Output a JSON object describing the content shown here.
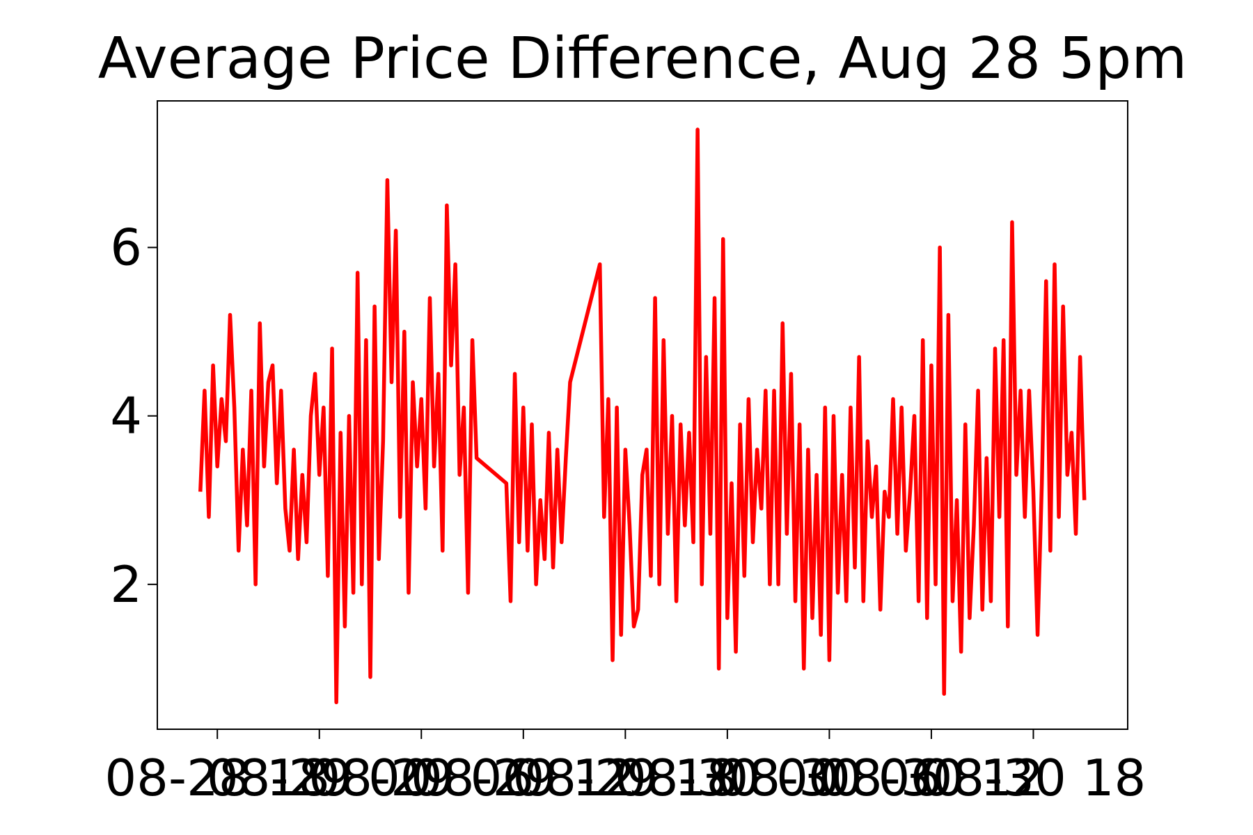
{
  "chart_data": {
    "type": "line",
    "title": "Average Price Difference, Aug 28 5pm",
    "color": "#ff0000",
    "xlim": [
      14.47,
      71.55
    ],
    "xticks": [
      {
        "value": 18,
        "label": "08-28 18"
      },
      {
        "value": 24,
        "label": "08-29 00"
      },
      {
        "value": 30,
        "label": "08-29 06"
      },
      {
        "value": 36,
        "label": "08-29 12"
      },
      {
        "value": 42,
        "label": "08-29 18"
      },
      {
        "value": 48,
        "label": "08-30 00"
      },
      {
        "value": 54,
        "label": "08-30 06"
      },
      {
        "value": 60,
        "label": "08-30 12"
      },
      {
        "value": 66,
        "label": "08-30 18"
      }
    ],
    "ylim": [
      0.28,
      7.74
    ],
    "yticks": [
      2,
      4,
      6
    ],
    "grid": false,
    "x": [
      17,
      17.25,
      17.5,
      17.75,
      18,
      18.25,
      18.5,
      18.75,
      19,
      19.25,
      19.5,
      19.75,
      20,
      20.25,
      20.5,
      20.75,
      21,
      21.25,
      21.5,
      21.75,
      22,
      22.25,
      22.5,
      22.75,
      23,
      23.25,
      23.5,
      23.75,
      24,
      24.25,
      24.5,
      24.75,
      25,
      25.25,
      25.5,
      25.75,
      26,
      26.25,
      26.5,
      26.75,
      27,
      27.25,
      27.5,
      27.75,
      28,
      28.25,
      28.5,
      28.75,
      29,
      29.25,
      29.5,
      29.75,
      30,
      30.25,
      30.5,
      30.75,
      31,
      31.25,
      31.5,
      31.75,
      32,
      32.25,
      32.5,
      32.75,
      33,
      33.25,
      35,
      35.25,
      35.5,
      35.75,
      36,
      36.25,
      36.5,
      36.75,
      37,
      37.25,
      37.5,
      37.75,
      38,
      38.25,
      38.5,
      38.75,
      40.5,
      40.75,
      41,
      41.25,
      41.5,
      41.75,
      42,
      42.25,
      42.5,
      42.75,
      43,
      43.25,
      43.5,
      43.75,
      44,
      44.25,
      44.5,
      44.75,
      45,
      45.25,
      45.5,
      45.75,
      46,
      46.25,
      46.5,
      46.75,
      47,
      47.25,
      47.5,
      47.75,
      48,
      48.25,
      48.5,
      48.75,
      49,
      49.25,
      49.5,
      49.75,
      50,
      50.25,
      50.5,
      50.75,
      51,
      51.25,
      51.5,
      51.75,
      52,
      52.25,
      52.5,
      52.75,
      53,
      53.25,
      53.5,
      53.75,
      54,
      54.25,
      54.5,
      54.75,
      55,
      55.25,
      55.5,
      55.75,
      56,
      56.25,
      56.5,
      56.75,
      57,
      57.25,
      57.5,
      57.75,
      58,
      58.25,
      58.5,
      58.75,
      59,
      59.25,
      59.5,
      59.75,
      60,
      60.25,
      60.5,
      60.75,
      61,
      61.25,
      61.5,
      61.75,
      62,
      62.25,
      62.5,
      62.75,
      63,
      63.25,
      63.5,
      63.75,
      64,
      64.25,
      64.5,
      64.75,
      65,
      65.25,
      65.5,
      65.75,
      66,
      66.25,
      66.5,
      66.75,
      67,
      67.25,
      67.5,
      67.75,
      68,
      68.25,
      68.5,
      68.75,
      69
    ],
    "values": [
      3.1,
      4.3,
      2.8,
      4.6,
      3.4,
      4.2,
      3.7,
      5.2,
      4.1,
      2.4,
      3.6,
      2.7,
      4.3,
      2.0,
      5.1,
      3.4,
      4.4,
      4.6,
      3.2,
      4.3,
      2.9,
      2.4,
      3.6,
      2.3,
      3.3,
      2.5,
      4.0,
      4.5,
      3.3,
      4.1,
      2.1,
      4.8,
      0.6,
      3.8,
      1.5,
      4.0,
      1.9,
      5.7,
      2.0,
      4.9,
      0.9,
      5.3,
      2.3,
      3.7,
      6.8,
      4.4,
      6.2,
      2.8,
      5.0,
      1.9,
      4.4,
      3.4,
      4.2,
      2.9,
      5.4,
      3.4,
      4.5,
      2.4,
      6.5,
      4.6,
      5.8,
      3.3,
      4.1,
      1.9,
      4.9,
      3.5,
      3.2,
      1.8,
      4.5,
      2.5,
      4.1,
      2.4,
      3.9,
      2.0,
      3.0,
      2.3,
      3.8,
      2.2,
      3.6,
      2.5,
      3.5,
      4.4,
      5.8,
      2.8,
      4.2,
      1.1,
      4.1,
      1.4,
      3.6,
      2.7,
      1.5,
      1.7,
      3.3,
      3.6,
      2.1,
      5.4,
      2.0,
      4.9,
      2.6,
      4.0,
      1.8,
      3.9,
      2.7,
      3.8,
      2.5,
      7.4,
      2.0,
      4.7,
      2.6,
      5.4,
      1.0,
      6.1,
      1.6,
      3.2,
      1.2,
      3.9,
      2.1,
      4.2,
      2.5,
      3.6,
      2.9,
      4.3,
      2.0,
      4.3,
      2.0,
      5.1,
      2.6,
      4.5,
      1.8,
      3.9,
      1.0,
      3.6,
      1.6,
      3.3,
      1.4,
      4.1,
      1.1,
      4.0,
      1.9,
      3.3,
      1.8,
      4.1,
      2.2,
      4.7,
      1.8,
      3.7,
      2.8,
      3.4,
      1.7,
      3.1,
      2.8,
      4.2,
      2.6,
      4.1,
      2.4,
      3.1,
      4.0,
      1.8,
      4.9,
      1.6,
      4.6,
      2.0,
      6.0,
      0.7,
      5.2,
      1.8,
      3.0,
      1.2,
      3.9,
      1.6,
      2.7,
      4.3,
      1.7,
      3.5,
      1.8,
      4.8,
      2.8,
      4.9,
      1.5,
      6.3,
      3.3,
      4.3,
      2.8,
      4.3,
      3.1,
      1.4,
      3.2,
      5.6,
      2.4,
      5.8,
      2.8,
      5.3,
      3.3,
      3.8,
      2.6,
      4.7,
      3.0
    ]
  }
}
